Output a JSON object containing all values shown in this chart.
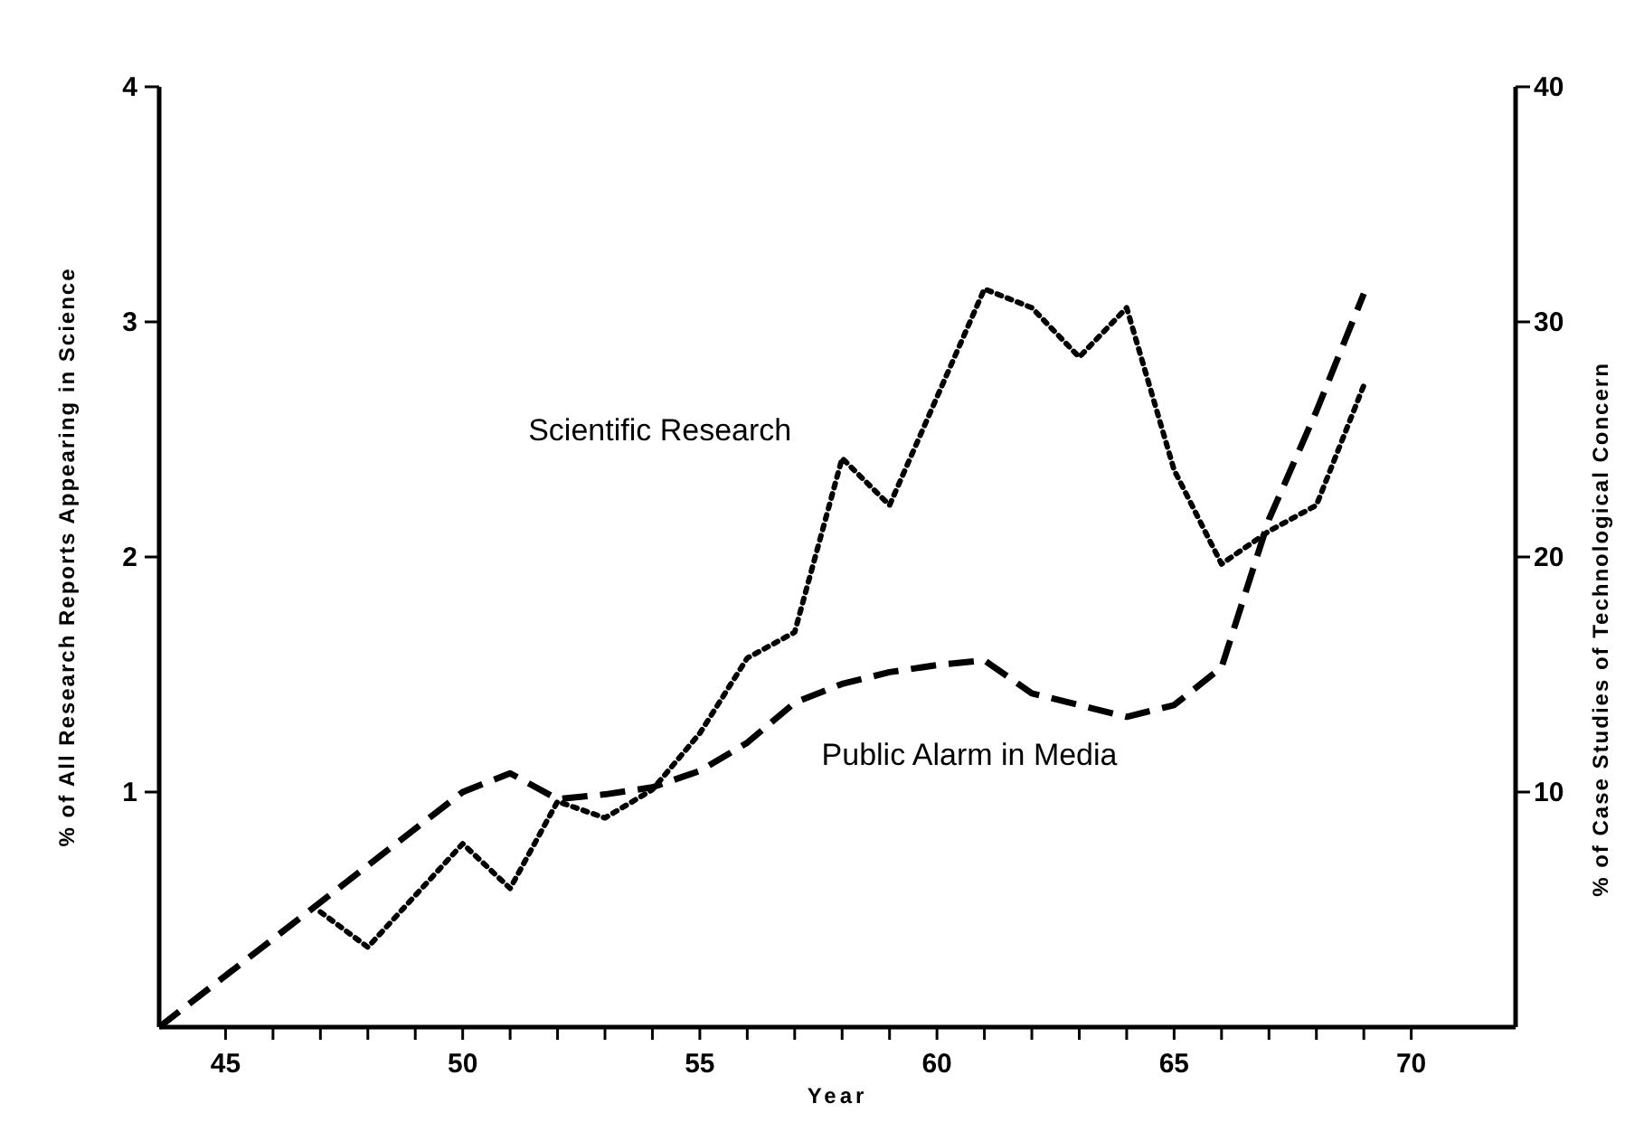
{
  "chart_data": {
    "type": "line",
    "xlabel": "Year",
    "ylabel": "% of All Research Reports Appearing in Science",
    "y2label": "% of Case Studies of Technological Concern",
    "xlim": [
      43.6,
      72.2
    ],
    "xticks": [
      45,
      {
        "value": 46,
        "label": null
      },
      {
        "value": 47,
        "label": null
      },
      {
        "value": 48,
        "label": null
      },
      {
        "value": 49,
        "label": null
      },
      50,
      {
        "value": 51,
        "label": null
      },
      {
        "value": 52,
        "label": null
      },
      {
        "value": 53,
        "label": null
      },
      {
        "value": 54,
        "label": null
      },
      55,
      {
        "value": 56,
        "label": null
      },
      {
        "value": 57,
        "label": null
      },
      {
        "value": 58,
        "label": null
      },
      {
        "value": 59,
        "label": null
      },
      60,
      {
        "value": 61,
        "label": null
      },
      {
        "value": 62,
        "label": null
      },
      {
        "value": 63,
        "label": null
      },
      {
        "value": 64,
        "label": null
      },
      65,
      {
        "value": 66,
        "label": null
      },
      {
        "value": 67,
        "label": null
      },
      {
        "value": 68,
        "label": null
      },
      {
        "value": 69,
        "label": null
      },
      70
    ],
    "ylim": [
      0,
      4
    ],
    "yticks": [
      1,
      2,
      3,
      4
    ],
    "y2lim": [
      0,
      40
    ],
    "y2ticks": [
      10,
      20,
      30,
      40
    ],
    "grid": false,
    "legend": false,
    "marker": "none",
    "series": [
      {
        "name": "Scientific Research",
        "color": "#000000",
        "line_style": "dotted",
        "x": [
          47,
          48,
          50,
          51,
          52,
          53,
          54,
          55,
          56,
          57,
          58,
          59,
          61,
          62,
          63,
          64,
          65,
          66,
          67,
          68,
          69
        ],
        "values": [
          0.49,
          0.34,
          0.78,
          0.59,
          0.96,
          0.89,
          1.01,
          1.25,
          1.57,
          1.68,
          2.42,
          2.22,
          3.14,
          3.06,
          2.85,
          3.06,
          2.37,
          1.97,
          2.11,
          2.22,
          2.73
        ]
      },
      {
        "name": "Public Alarm in Media",
        "color": "#000000",
        "line_style": "dashed",
        "axis": "y2",
        "x": [
          43.6,
          50,
          51,
          52,
          53,
          54,
          55,
          56,
          57,
          58,
          59,
          60,
          61,
          62,
          63,
          64,
          65,
          66,
          67,
          68,
          69
        ],
        "values": [
          0,
          10,
          10.8,
          9.7,
          9.9,
          10.2,
          10.9,
          12.1,
          13.8,
          14.6,
          15.1,
          15.4,
          15.6,
          14.2,
          13.7,
          13.2,
          13.7,
          15.3,
          21.6,
          26.2,
          31.2
        ]
      }
    ]
  }
}
